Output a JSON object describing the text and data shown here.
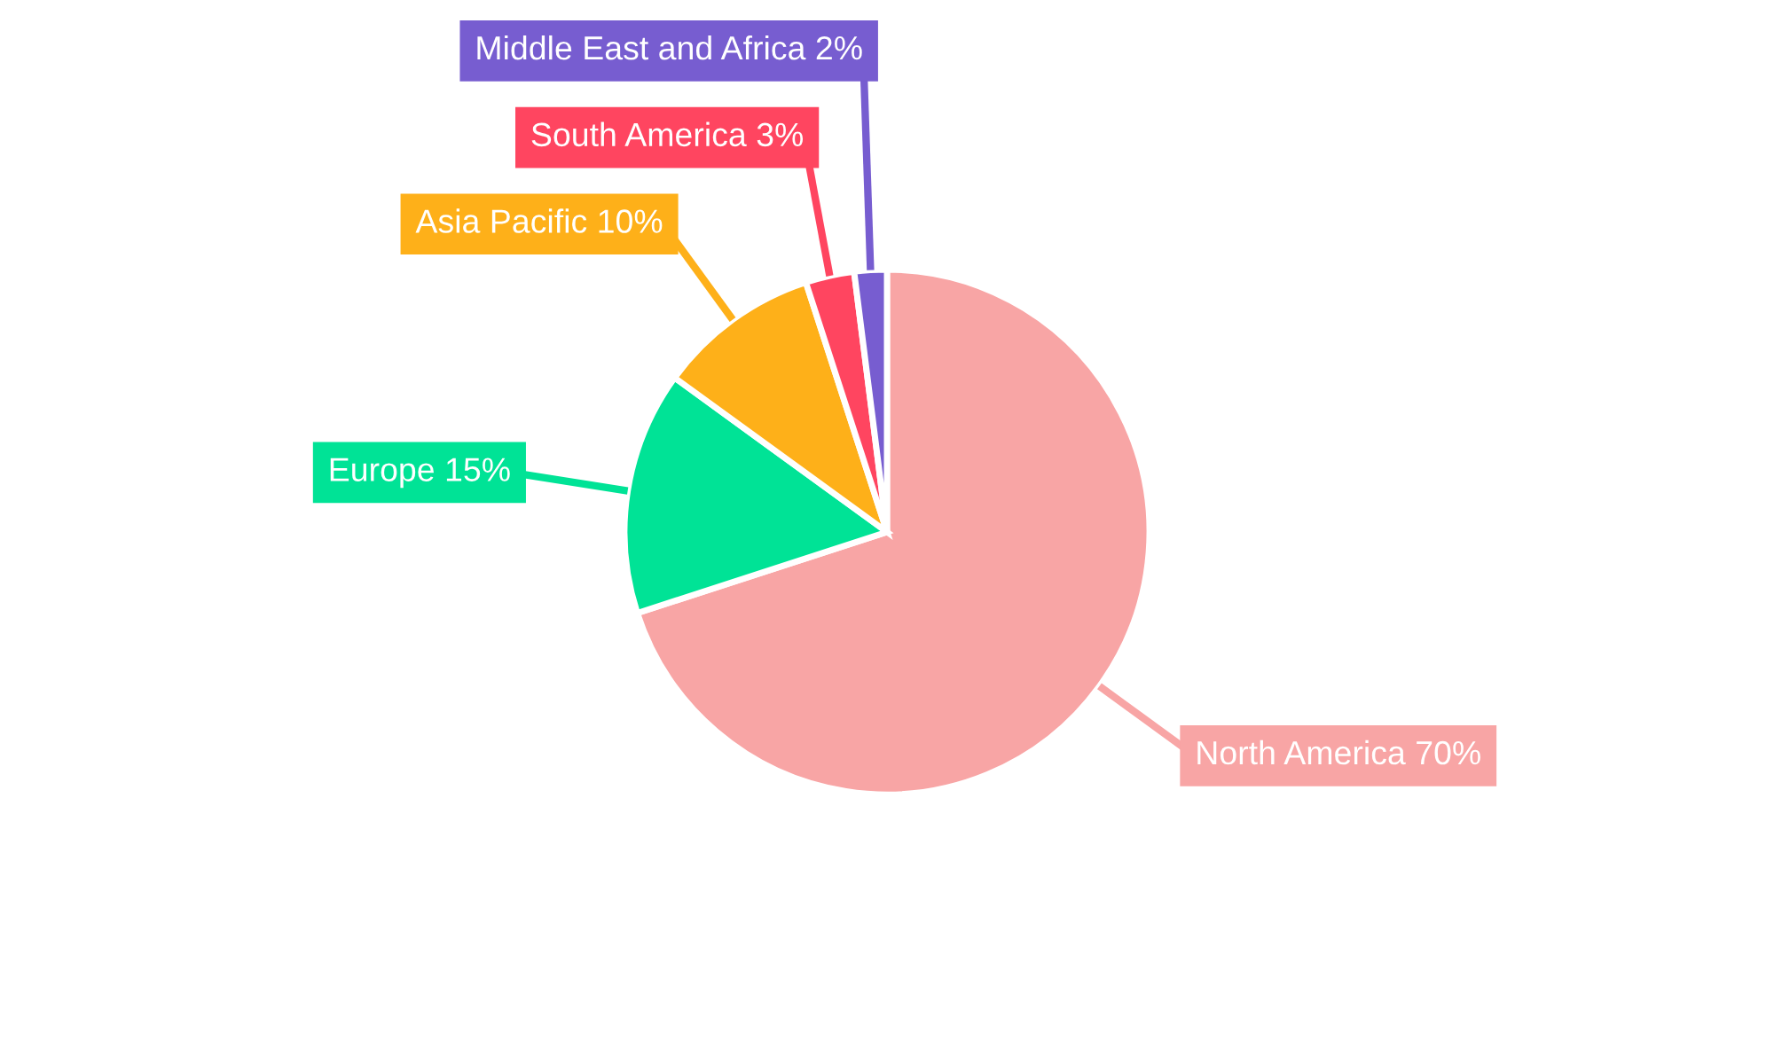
{
  "chart_data": {
    "type": "pie",
    "categories": [
      "North America",
      "Europe",
      "Asia Pacific",
      "South America",
      "Middle East and Africa"
    ],
    "values": [
      70,
      15,
      10,
      3,
      2
    ],
    "colors": [
      "#f8a5a5",
      "#00e396",
      "#feb019",
      "#ff4560",
      "#775dd0"
    ],
    "value_labels": [
      "70%",
      "15%",
      "10%",
      "3%",
      "2%"
    ]
  }
}
